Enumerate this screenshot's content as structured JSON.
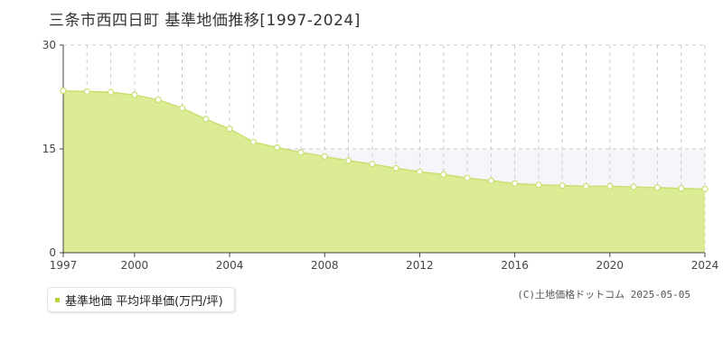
{
  "title": "三条市西四日町 基準地価推移[1997-2024]",
  "legend_label": "基準地価 平均坪単価(万円/坪)",
  "copyright": "(C)土地価格ドットコム 2025-05-05",
  "colors": {
    "area_fill": "#dcec94",
    "line": "#c8e070",
    "marker_fill": "#ffffff",
    "marker_stroke": "#c8e070",
    "grid": "#cccccc",
    "band_fill": "#f7f5f9",
    "legend_marker": "#b5d336"
  },
  "chart_data": {
    "type": "area",
    "title": "三条市西四日町 基準地価推移[1997-2024]",
    "xlabel": "",
    "ylabel": "",
    "xlim": [
      1997,
      2024
    ],
    "ylim": [
      0,
      30
    ],
    "yticks": [
      "0",
      "15",
      "30"
    ],
    "xticks": [
      "1997",
      "2000",
      "2004",
      "2008",
      "2012",
      "2016",
      "2020",
      "2024"
    ],
    "grid": true,
    "legend_position": "bottom-left",
    "series": [
      {
        "name": "基準地価 平均坪単価(万円/坪)",
        "x": [
          1997,
          1998,
          1999,
          2000,
          2001,
          2002,
          2003,
          2004,
          2005,
          2006,
          2007,
          2008,
          2009,
          2010,
          2011,
          2012,
          2013,
          2014,
          2015,
          2016,
          2017,
          2018,
          2019,
          2020,
          2021,
          2022,
          2023,
          2024
        ],
        "values": [
          23.4,
          23.3,
          23.2,
          22.8,
          22.1,
          20.9,
          19.3,
          17.9,
          16.0,
          15.2,
          14.5,
          13.9,
          13.3,
          12.8,
          12.2,
          11.7,
          11.3,
          10.8,
          10.4,
          10.0,
          9.8,
          9.7,
          9.6,
          9.6,
          9.5,
          9.4,
          9.3,
          9.2
        ]
      }
    ]
  }
}
